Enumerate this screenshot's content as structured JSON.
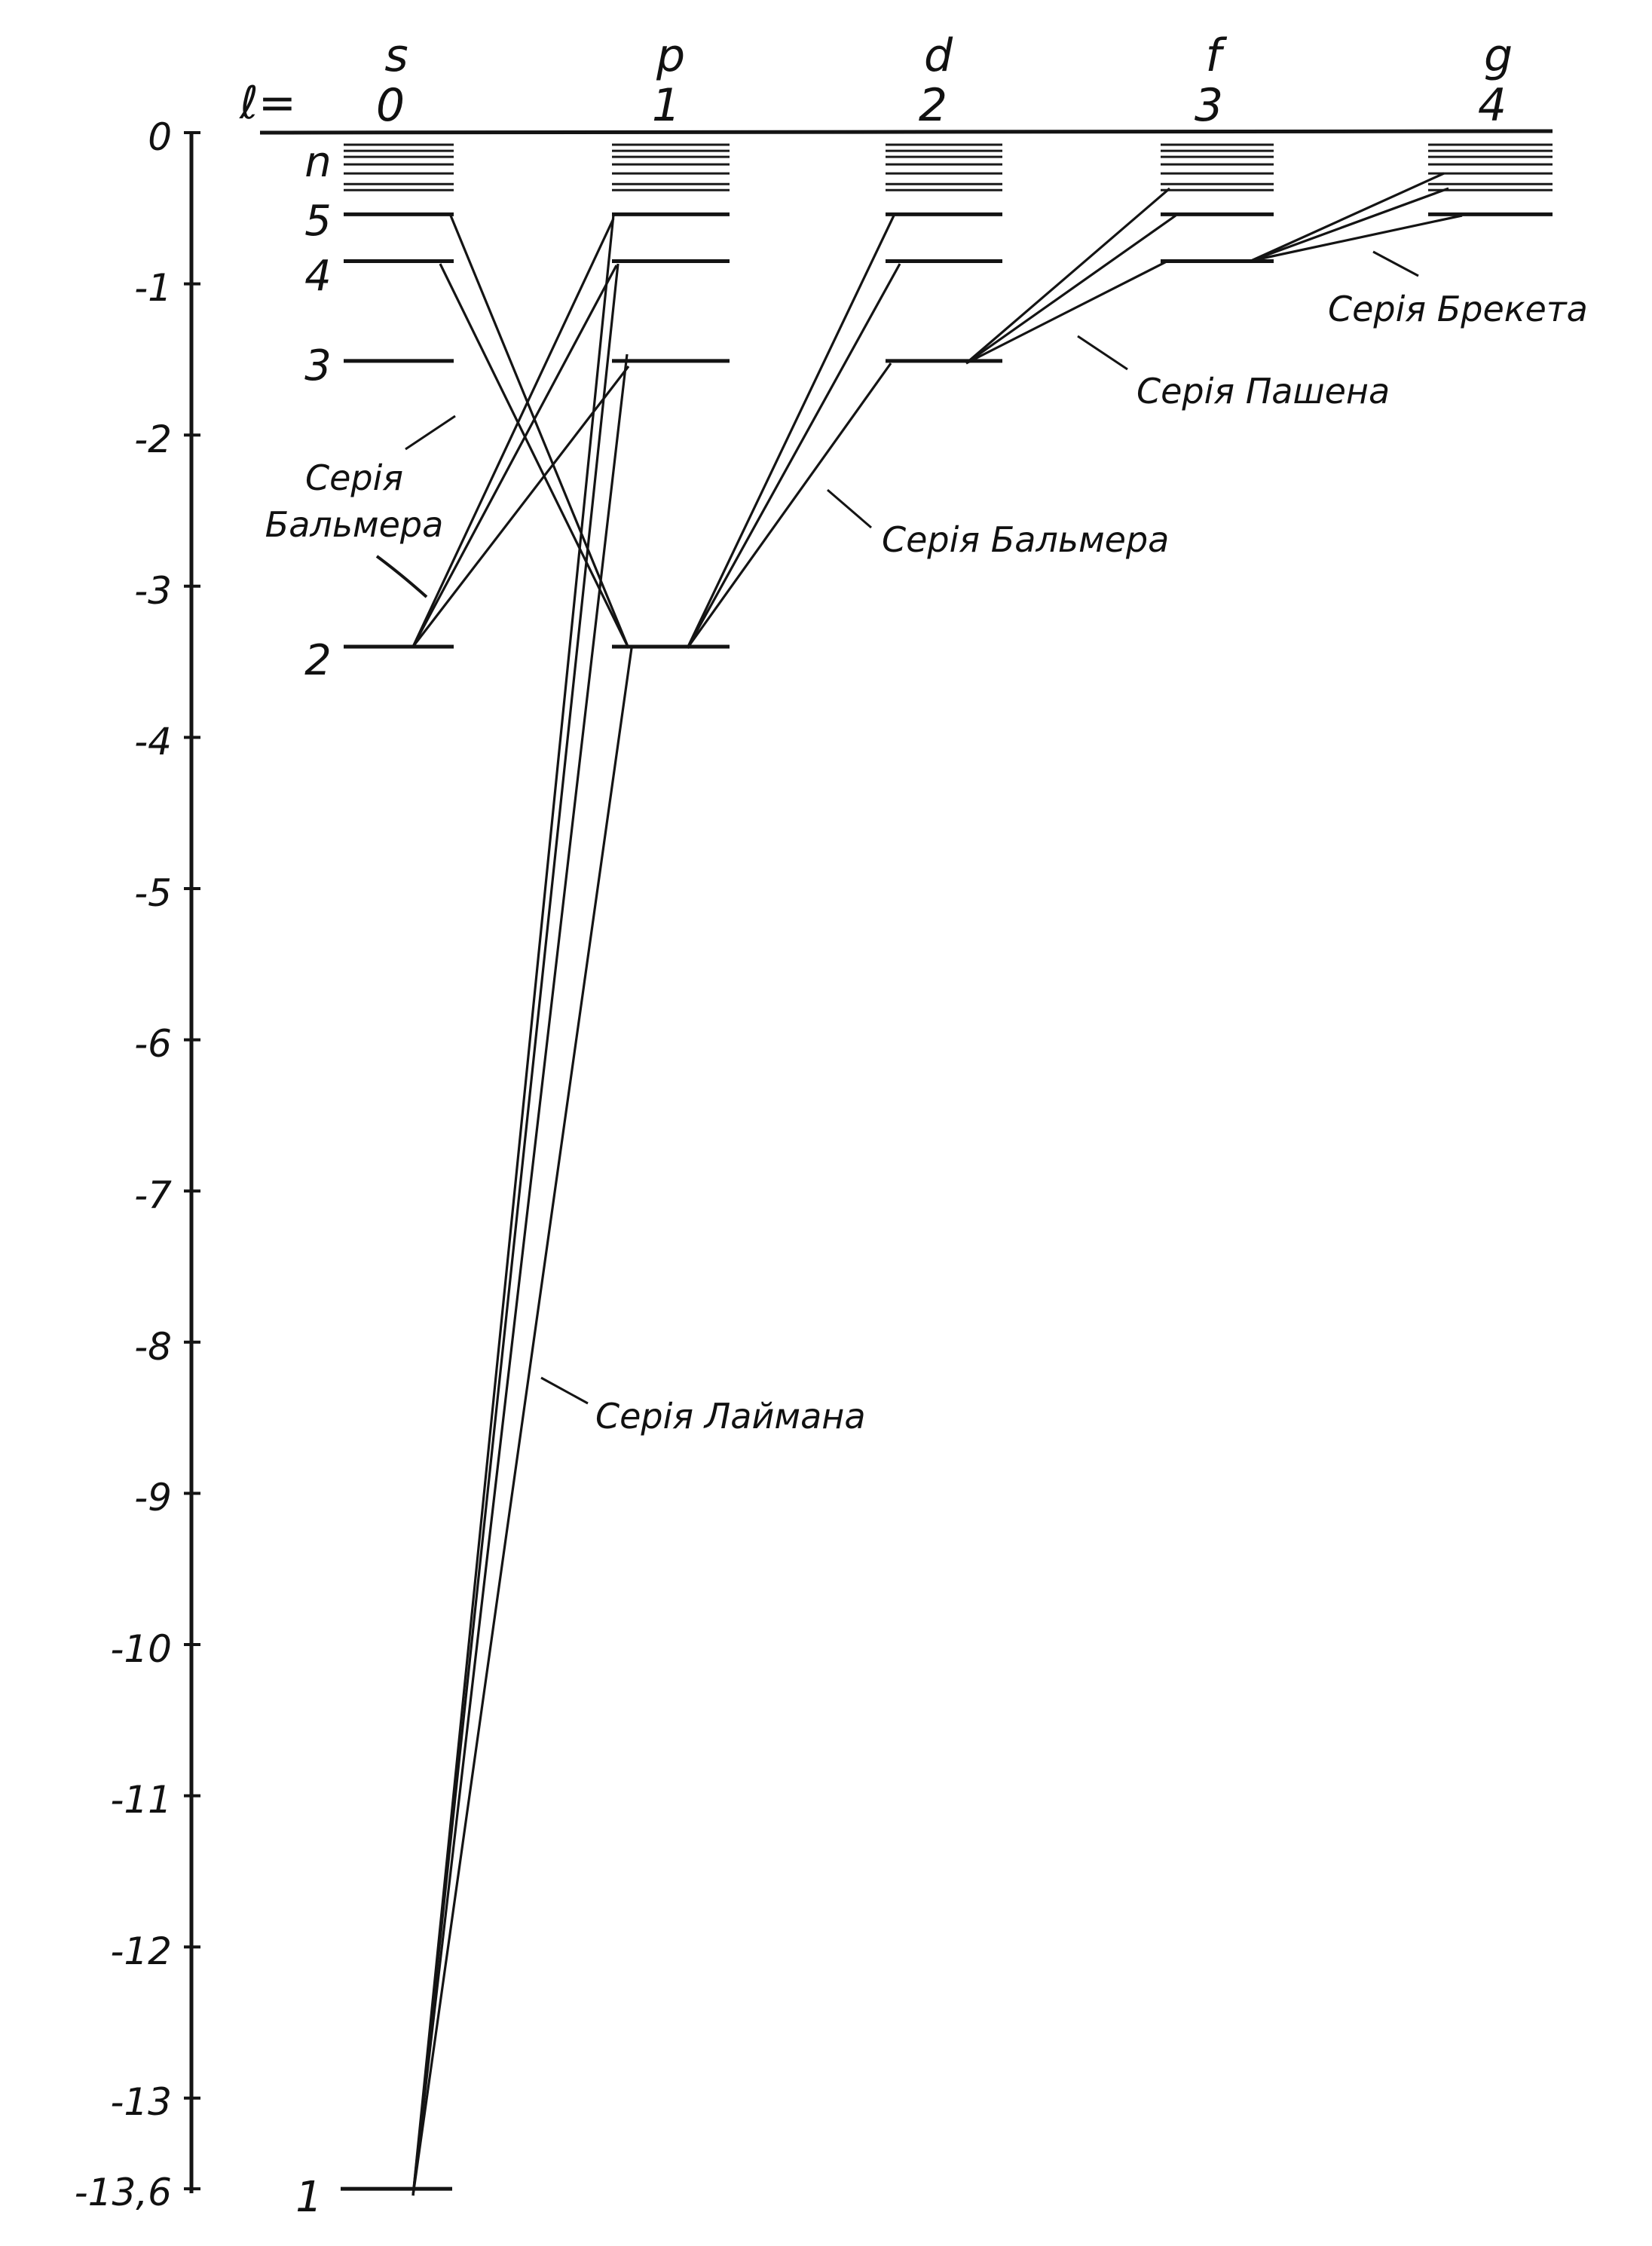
{
  "diagram": {
    "l_label": "ℓ=",
    "n_label": "n",
    "energy_axis": {
      "ticks": [
        {
          "value": 0,
          "label": "0"
        },
        {
          "value": -1,
          "label": "-1"
        },
        {
          "value": -2,
          "label": "-2"
        },
        {
          "value": -3,
          "label": "-3"
        },
        {
          "value": -4,
          "label": "-4"
        },
        {
          "value": -5,
          "label": "-5"
        },
        {
          "value": -6,
          "label": "-6"
        },
        {
          "value": -7,
          "label": "-7"
        },
        {
          "value": -8,
          "label": "-8"
        },
        {
          "value": -9,
          "label": "-9"
        },
        {
          "value": -10,
          "label": "-10"
        },
        {
          "value": -11,
          "label": "-11"
        },
        {
          "value": -12,
          "label": "-12"
        },
        {
          "value": -13,
          "label": "-13"
        },
        {
          "value": -13.6,
          "label": "-13,6"
        }
      ]
    },
    "orbitals": [
      {
        "letter": "s",
        "l": "0"
      },
      {
        "letter": "p",
        "l": "1"
      },
      {
        "letter": "d",
        "l": "2"
      },
      {
        "letter": "f",
        "l": "3"
      },
      {
        "letter": "g",
        "l": "4"
      }
    ],
    "levels": [
      {
        "n": 1,
        "label": "1",
        "energy": -13.6
      },
      {
        "n": 2,
        "label": "2",
        "energy": -3.4
      },
      {
        "n": 3,
        "label": "3",
        "energy": -1.51
      },
      {
        "n": 4,
        "label": "4",
        "energy": -0.85
      },
      {
        "n": 5,
        "label": "5",
        "energy": -0.54
      }
    ],
    "series": [
      {
        "name": "Серія Лаймана"
      },
      {
        "name": "Серія Бальмера"
      },
      {
        "name": "Серія Бальмера"
      },
      {
        "name": "Серія Пашена"
      },
      {
        "name": "Серія Брекета"
      }
    ],
    "balmer_s_line1": "Серія",
    "balmer_s_line2": "Бальмера"
  }
}
